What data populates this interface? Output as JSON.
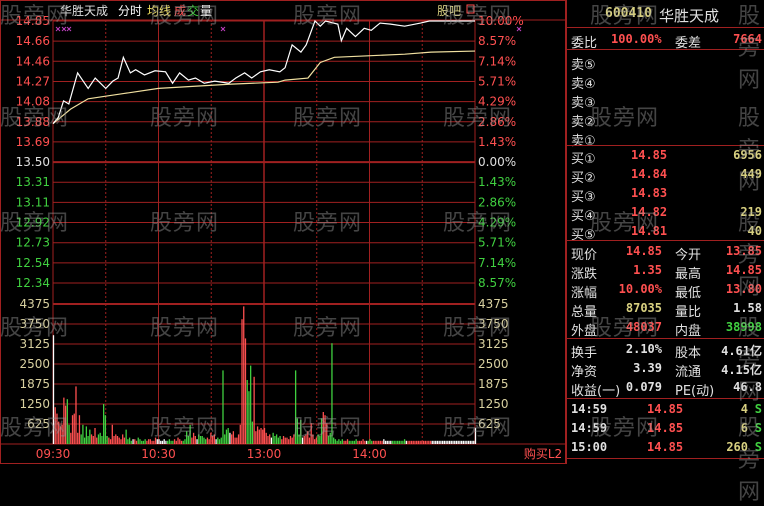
{
  "header": {
    "stock_name": "华胜天成",
    "tab_fenshi": "分时",
    "tab_avg": "均线",
    "tab_vol_1": "成",
    "tab_vol_2": "交",
    "tab_vol_3": "量",
    "guba": "股吧"
  },
  "watermark": "股旁网",
  "colors": {
    "grid": "#a02020",
    "up": "#ff5050",
    "down": "#40d040",
    "price_line": "#ffffff",
    "avg_line": "#f0e0a0",
    "axis_green": "#40d040"
  },
  "chart_data": {
    "type": "line",
    "prev_close": 13.5,
    "price_ticks": [
      "14.85",
      "14.66",
      "14.46",
      "14.27",
      "14.08",
      "13.88",
      "13.69",
      "13.50",
      "13.31",
      "13.11",
      "12.92",
      "12.73",
      "12.54",
      "12.34"
    ],
    "pct_ticks": [
      "10.00%",
      "8.57%",
      "7.14%",
      "5.71%",
      "4.29%",
      "2.86%",
      "1.43%",
      "0.00%",
      "1.43%",
      "2.86%",
      "4.29%",
      "5.71%",
      "7.14%",
      "8.57%"
    ],
    "ylim": [
      12.34,
      14.85
    ],
    "vol_ticks": [
      "4375",
      "3750",
      "3125",
      "2500",
      "1875",
      "1250",
      "625"
    ],
    "vol_max": 4375,
    "time_labels": [
      "09:30",
      "10:30",
      "13:00",
      "14:00"
    ],
    "minutes_total": 240,
    "price": [
      [
        0,
        13.86
      ],
      [
        3,
        13.92
      ],
      [
        6,
        14.08
      ],
      [
        9,
        14.05
      ],
      [
        14,
        14.35
      ],
      [
        20,
        14.2
      ],
      [
        24,
        14.3
      ],
      [
        30,
        14.2
      ],
      [
        34,
        14.27
      ],
      [
        37,
        14.3
      ],
      [
        40,
        14.5
      ],
      [
        44,
        14.35
      ],
      [
        47,
        14.38
      ],
      [
        52,
        14.33
      ],
      [
        58,
        14.37
      ],
      [
        64,
        14.36
      ],
      [
        68,
        14.25
      ],
      [
        72,
        14.35
      ],
      [
        77,
        14.28
      ],
      [
        81,
        14.3
      ],
      [
        86,
        14.25
      ],
      [
        92,
        14.27
      ],
      [
        100,
        14.25
      ],
      [
        104,
        14.3
      ],
      [
        109,
        14.35
      ],
      [
        113,
        14.3
      ],
      [
        118,
        14.36
      ],
      [
        123,
        14.38
      ],
      [
        129,
        14.36
      ],
      [
        132,
        14.4
      ],
      [
        136,
        14.62
      ],
      [
        141,
        14.55
      ],
      [
        144,
        14.62
      ],
      [
        149,
        14.85
      ],
      [
        152,
        14.8
      ],
      [
        155,
        14.85
      ],
      [
        162,
        14.82
      ],
      [
        164,
        14.66
      ],
      [
        167,
        14.78
      ],
      [
        172,
        14.7
      ],
      [
        177,
        14.78
      ],
      [
        181,
        14.76
      ],
      [
        186,
        14.83
      ],
      [
        192,
        14.82
      ],
      [
        200,
        14.8
      ],
      [
        209,
        14.83
      ],
      [
        214,
        14.85
      ],
      [
        240,
        14.85
      ]
    ],
    "avg": [
      [
        0,
        13.86
      ],
      [
        10,
        14.0
      ],
      [
        20,
        14.1
      ],
      [
        40,
        14.15
      ],
      [
        60,
        14.2
      ],
      [
        100,
        14.24
      ],
      [
        128,
        14.26
      ],
      [
        132,
        14.28
      ],
      [
        145,
        14.3
      ],
      [
        152,
        14.45
      ],
      [
        160,
        14.5
      ],
      [
        200,
        14.53
      ],
      [
        215,
        14.55
      ],
      [
        240,
        14.56
      ]
    ],
    "volume": [
      3400,
      1150,
      950,
      700,
      550,
      600,
      1450,
      1200,
      1400,
      600,
      350,
      900,
      950,
      1800,
      350,
      900,
      300,
      600,
      200,
      550,
      250,
      450,
      300,
      250,
      500,
      200,
      300,
      350,
      250,
      1250,
      900,
      250,
      200,
      150,
      600,
      250,
      300,
      250,
      200,
      150,
      300,
      200,
      450,
      150,
      200,
      100,
      150,
      150,
      100,
      200,
      150,
      100,
      100,
      150,
      100,
      150,
      150,
      100,
      100,
      200,
      150,
      150,
      100,
      100,
      150,
      100,
      100,
      150,
      100,
      100,
      150,
      100,
      200,
      150,
      100,
      100,
      150,
      400,
      250,
      600,
      200,
      350,
      250,
      150,
      300,
      250,
      250,
      200,
      150,
      200,
      150,
      350,
      250,
      300,
      150,
      200,
      150,
      200,
      2300,
      300,
      450,
      500,
      350,
      300,
      400,
      200,
      200,
      300,
      600,
      3900,
      4300,
      3300,
      2000,
      1650,
      2450,
      700,
      2100,
      400,
      550,
      450,
      500,
      450,
      500,
      350,
      250,
      300,
      200,
      350,
      250,
      300,
      200,
      250,
      150,
      250,
      200,
      200,
      150,
      250,
      200,
      300,
      2300,
      800,
      300,
      750,
      200,
      250,
      300,
      400,
      200,
      650,
      300,
      150,
      200,
      300,
      250,
      800,
      1000,
      900,
      650,
      250,
      350,
      3150,
      200,
      150,
      100,
      150,
      100,
      150,
      100,
      100,
      150,
      100,
      100,
      100,
      100,
      150,
      100,
      100,
      100,
      150,
      100,
      100,
      100,
      150,
      100,
      100,
      100,
      100,
      100,
      100,
      100,
      150,
      100,
      100,
      100,
      100,
      100,
      100,
      100,
      100,
      100,
      100,
      100,
      150,
      100,
      100,
      100,
      100,
      100,
      100,
      100,
      100,
      100,
      100,
      100,
      100,
      100,
      100,
      100,
      100,
      100,
      100,
      100,
      100,
      100,
      100,
      100,
      100,
      100,
      100,
      100,
      100,
      100,
      100,
      100,
      100,
      100,
      100,
      100,
      100,
      100,
      100,
      100,
      100,
      500
    ],
    "volume_colors_rule": "red if price up, green if down, white if flat"
  },
  "buy_l2": "购买L2",
  "quote": {
    "code": "600410",
    "name": "华胜天成",
    "weibi_label": "委比",
    "weibi": "100.00%",
    "weicha_label": "委差",
    "weicha": "7664",
    "sell": [
      {
        "label": "卖⑤"
      },
      {
        "label": "卖④"
      },
      {
        "label": "卖③"
      },
      {
        "label": "卖②"
      },
      {
        "label": "卖①"
      }
    ],
    "buy": [
      {
        "label": "买①",
        "price": "14.85",
        "vol": "6956"
      },
      {
        "label": "买②",
        "price": "14.84",
        "vol": "449"
      },
      {
        "label": "买③",
        "price": "14.83",
        "vol": ""
      },
      {
        "label": "买④",
        "price": "14.82",
        "vol": "219"
      },
      {
        "label": "买⑤",
        "price": "14.81",
        "vol": "40"
      }
    ],
    "stats": [
      {
        "l1": "现价",
        "v1": "14.85",
        "c1": "red",
        "l2": "今开",
        "v2": "13.85",
        "c2": "red"
      },
      {
        "l1": "涨跌",
        "v1": "1.35",
        "c1": "red",
        "l2": "最高",
        "v2": "14.85",
        "c2": "red"
      },
      {
        "l1": "涨幅",
        "v1": "10.00%",
        "c1": "red",
        "l2": "最低",
        "v2": "13.80",
        "c2": "red"
      },
      {
        "l1": "总量",
        "v1": "87035",
        "c1": "yel",
        "l2": "量比",
        "v2": "1.58",
        "c2": "wht"
      },
      {
        "l1": "外盘",
        "v1": "48037",
        "c1": "red",
        "l2": "内盘",
        "v2": "38998",
        "c2": "grn"
      }
    ],
    "fund": [
      {
        "l1": "换手",
        "v1": "2.10%",
        "l2": "股本",
        "v2": "4.61亿"
      },
      {
        "l1": "净资",
        "v1": "3.39",
        "l2": "流通",
        "v2": "4.15亿"
      },
      {
        "l1": "收益(一)",
        "v1": "0.079",
        "l2": "PE(动)",
        "v2": "46.8"
      }
    ],
    "ticks": [
      {
        "time": "14:59",
        "price": "14.85",
        "vol": "4",
        "side": "S"
      },
      {
        "time": "14:59",
        "price": "14.85",
        "vol": "6",
        "side": "S"
      },
      {
        "time": "15:00",
        "price": "14.85",
        "vol": "260",
        "side": "S"
      }
    ]
  }
}
